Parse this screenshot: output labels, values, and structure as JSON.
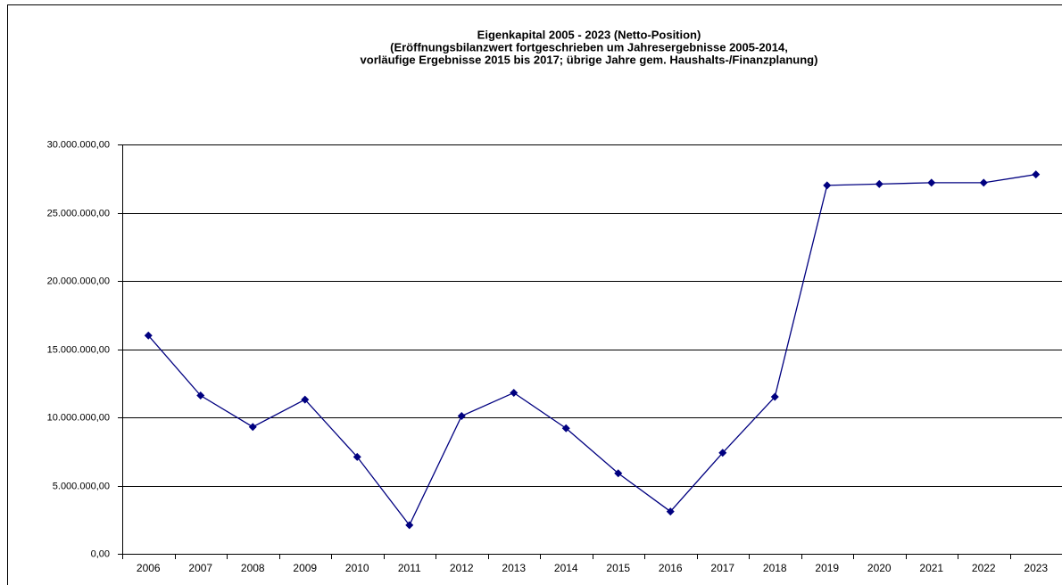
{
  "chart_data": {
    "type": "line",
    "title": "Eigenkapital 2005 - 2023 (Netto-Position)",
    "subtitle": [
      "(Eröffnungsbilanzwert fortgeschrieben um Jahresergebnisse 2005-2014,",
      "vorläufige Ergebnisse 2015 bis 2017; übrige Jahre gem. Haushalts-/Finanzplanung)"
    ],
    "categories": [
      "2006",
      "2007",
      "2008",
      "2009",
      "2010",
      "2011",
      "2012",
      "2013",
      "2014",
      "2015",
      "2016",
      "2017",
      "2018",
      "2019",
      "2020",
      "2021",
      "2022",
      "2023"
    ],
    "series": [
      {
        "color": "#000080",
        "values": [
          16000000,
          11600000,
          9300000,
          11300000,
          7100000,
          2100000,
          10100000,
          11800000,
          9200000,
          5900000,
          3100000,
          7400000,
          11500000,
          27000000,
          27100000,
          27200000,
          27200000,
          27800000
        ]
      }
    ],
    "ylim": [
      0,
      30000000
    ],
    "yticks": [
      {
        "value": 0,
        "label": "0,00"
      },
      {
        "value": 5000000,
        "label": "5.000.000,00"
      },
      {
        "value": 10000000,
        "label": "10.000.000,00"
      },
      {
        "value": 15000000,
        "label": "15.000.000,00"
      },
      {
        "value": 20000000,
        "label": "20.000.000,00"
      },
      {
        "value": 25000000,
        "label": "25.000.000,00"
      },
      {
        "value": 30000000,
        "label": "30.000.000,00"
      }
    ],
    "grid": true
  }
}
